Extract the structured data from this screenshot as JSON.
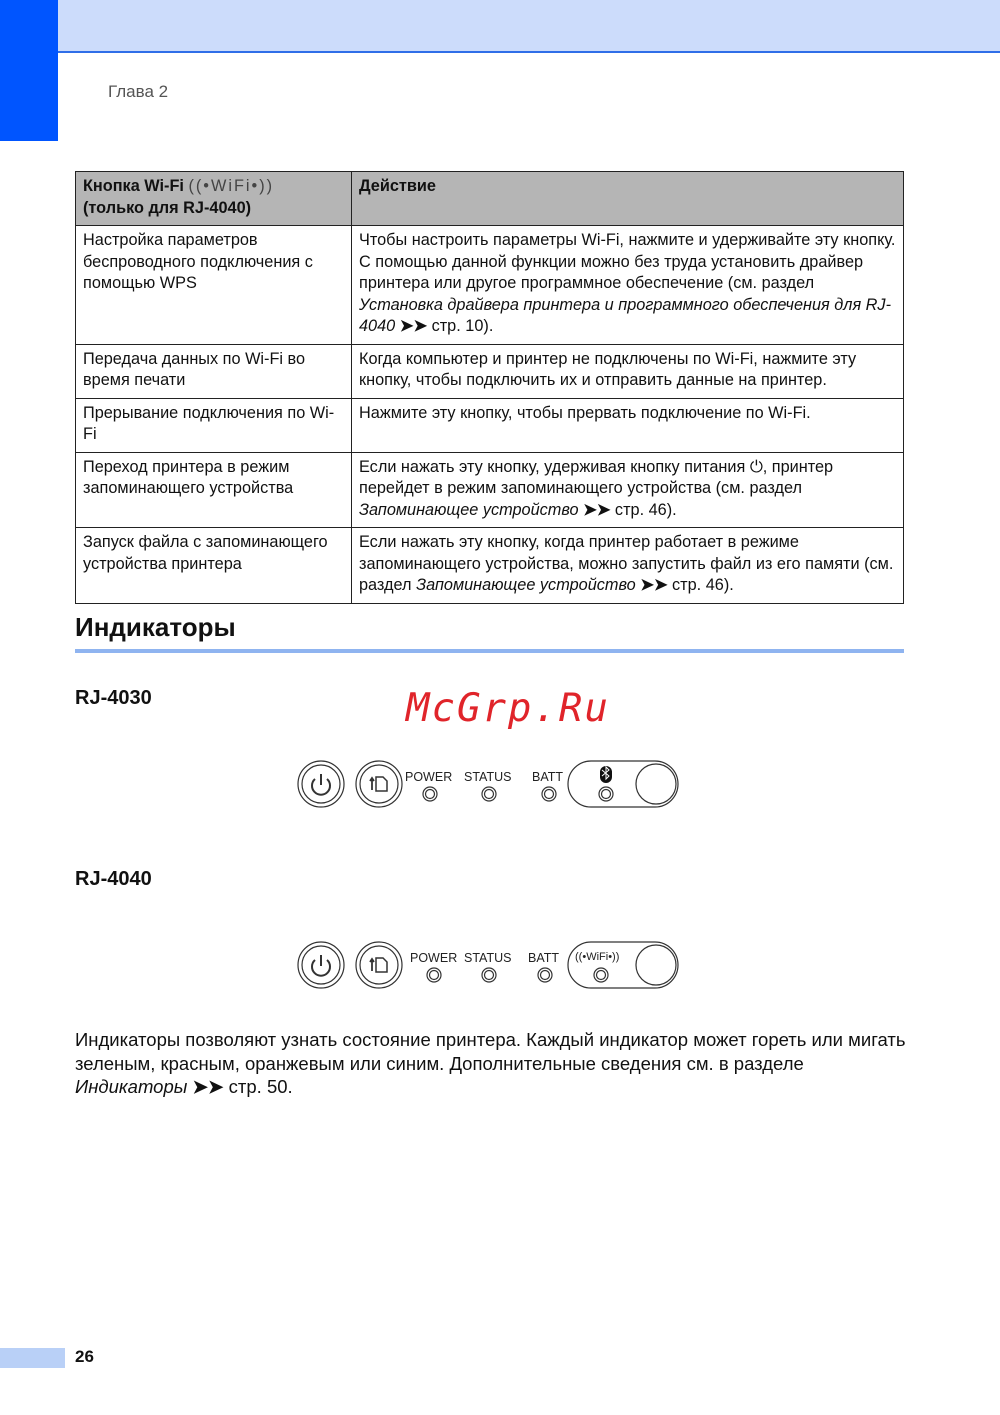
{
  "header": {
    "chapter": "Глава 2"
  },
  "table": {
    "head": {
      "col1_line1": "Кнопка Wi-Fi",
      "col1_icon": "WiFi",
      "col1_line2": "(только для RJ-4040)",
      "col2": "Действие"
    },
    "rows": [
      {
        "function": "Настройка параметров беспроводного подключения с помощью WPS",
        "action": "Чтобы настроить параметры Wi-Fi, нажмите и удерживайте эту кнопку. С помощью данной функции можно без труда установить драйвер принтера или другое программное обеспечение (см. раздел ",
        "ref": "Установка драйвера принтера и программного обеспечения для RJ-4040",
        "page": " стр. 10)."
      },
      {
        "function": "Передача данных по Wi-Fi во время печати",
        "action": "Когда компьютер и принтер не подключены по Wi-Fi, нажмите эту кнопку, чтобы подключить их и отправить данные на принтер."
      },
      {
        "function": "Прерывание подключения по Wi-Fi",
        "action": "Нажмите эту кнопку, чтобы прервать подключение по Wi-Fi."
      },
      {
        "function": "Переход принтера в режим запоминающего устройства",
        "action": "Если нажать эту кнопку, удерживая кнопку питания ",
        "action2": ", принтер перейдет в режим запоминающего устройства (см. раздел ",
        "ref": "Запоминающее устройство",
        "page": " стр. 46)."
      },
      {
        "function": "Запуск файла с запоминающего устройства принтера",
        "action": "Если нажать эту кнопку, когда принтер работает в режиме запоминающего устройства, можно запустить файл из его памяти (см. раздел ",
        "ref": "Запоминающее устройство",
        "page": " стр. 46)."
      }
    ]
  },
  "section": {
    "title": "Индикаторы"
  },
  "watermark": "McGrp.Ru",
  "panels": [
    {
      "model": "RJ-4030",
      "labels": [
        "POWER",
        "STATUS",
        "BATT"
      ],
      "wireless": "bluetooth"
    },
    {
      "model": "RJ-4040",
      "labels": [
        "POWER",
        "STATUS",
        "BATT"
      ],
      "wireless": "WiFi"
    }
  ],
  "paragraph": {
    "text": "Индикаторы позволяют узнать состояние принтера. Каждый индикатор может гореть или мигать зеленым, красным, оранжевым или синим. Дополнительные сведения см. в разделе ",
    "ref": "Индикаторы",
    "page": " стр. 50."
  },
  "footer": {
    "page_number": "26"
  },
  "colors": {
    "accent": "#0055ff",
    "header_band": "#ccdcfb",
    "rule": "#8fb4f0",
    "table_header": "#b5b5b5",
    "watermark": "#e0242a"
  }
}
